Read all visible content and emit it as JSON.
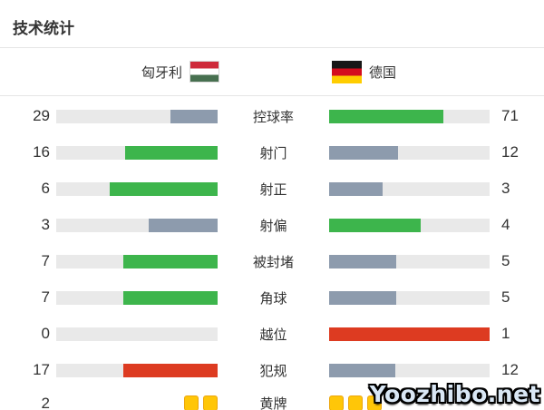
{
  "title": "技术统计",
  "teams": {
    "home": {
      "name": "匈牙利",
      "flag": "hungary-flag"
    },
    "away": {
      "name": "德国",
      "flag": "germany-flag"
    }
  },
  "watermark": "Yoozhibo.net",
  "colors": {
    "fill": {
      "green": "#3db54c",
      "gray": "#8d9bad",
      "red": "#dd3b21"
    },
    "track": "#e9e9e9",
    "card_yellow": "#ffc608",
    "flag_hungary": [
      "#ce2939",
      "#ffffff",
      "#477050"
    ],
    "flag_germany": [
      "#171717",
      "#d40d1e",
      "#ffcd00"
    ]
  },
  "chart_data": {
    "type": "bar",
    "orientation": "horizontal-paired",
    "title": "技术统计",
    "teams": [
      "匈牙利",
      "德国"
    ],
    "legend_position": "top",
    "rows": [
      {
        "label": "控球率",
        "home": 29,
        "away": 71,
        "home_color": "gray",
        "away_color": "green"
      },
      {
        "label": "射门",
        "home": 16,
        "away": 12,
        "home_color": "green",
        "away_color": "gray"
      },
      {
        "label": "射正",
        "home": 6,
        "away": 3,
        "home_color": "green",
        "away_color": "gray"
      },
      {
        "label": "射偏",
        "home": 3,
        "away": 4,
        "home_color": "gray",
        "away_color": "green"
      },
      {
        "label": "被封堵",
        "home": 7,
        "away": 5,
        "home_color": "green",
        "away_color": "gray"
      },
      {
        "label": "角球",
        "home": 7,
        "away": 5,
        "home_color": "green",
        "away_color": "gray"
      },
      {
        "label": "越位",
        "home": 0,
        "away": 1,
        "home_color": "gray",
        "away_color": "red"
      },
      {
        "label": "犯规",
        "home": 17,
        "away": 12,
        "home_color": "red",
        "away_color": "gray"
      },
      {
        "label": "黄牌",
        "home": 2,
        "away": 3,
        "type": "cards",
        "away_value_hidden": true
      }
    ]
  }
}
